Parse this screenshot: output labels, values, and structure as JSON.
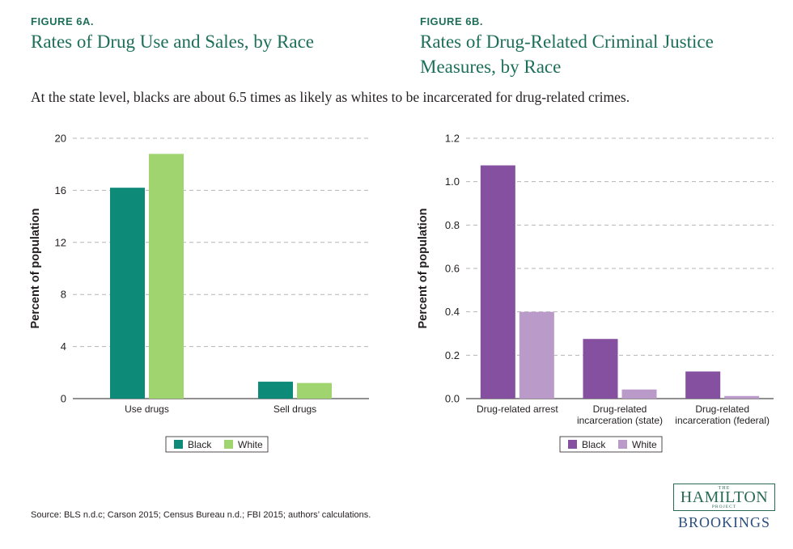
{
  "subtitle": "At the state level, blacks are about 6.5 times as likely as whites to be incarcerated for drug-related crimes.",
  "source": "Source: BLS n.d.c; Carson 2015; Census Bureau n.d.; FBI 2015; authors’ calculations.",
  "logo": {
    "the": "THE",
    "name": "HAMILTON",
    "project": "PROJECT",
    "brookings": "BROOKINGS"
  },
  "colors": {
    "title_green": "#1d6f5a",
    "black_green": "#0e8a78",
    "white_green": "#9fd46f",
    "black_purple": "#84509f",
    "white_purple": "#b99ac9"
  },
  "chart_data": [
    {
      "figure_label": "FIGURE 6A.",
      "title": "Rates of Drug Use and Sales, by Race",
      "type": "bar",
      "ylabel": "Percent of population",
      "xlabel": "",
      "ylim": [
        0,
        20
      ],
      "yticks": [
        "0",
        "4",
        "8",
        "12",
        "16",
        "20"
      ],
      "ytick_values": [
        0,
        4,
        8,
        12,
        16,
        20
      ],
      "categories": [
        [
          "Use drugs"
        ],
        [
          "Sell drugs"
        ]
      ],
      "series": [
        {
          "name": "Black",
          "color": "#0e8a78",
          "values": [
            16.2,
            1.3
          ]
        },
        {
          "name": "White",
          "color": "#9fd46f",
          "values": [
            18.8,
            1.2
          ]
        }
      ],
      "grid": true,
      "legend": "bottom-center"
    },
    {
      "figure_label": "FIGURE 6B.",
      "title": "Rates of Drug-Related Criminal Justice Measures, by Race",
      "type": "bar",
      "ylabel": "Percent of population",
      "xlabel": "",
      "ylim": [
        0,
        1.2
      ],
      "yticks": [
        "0.0",
        "0.2",
        "0.4",
        "0.6",
        "0.8",
        "1.0",
        "1.2"
      ],
      "ytick_values": [
        0,
        0.2,
        0.4,
        0.6,
        0.8,
        1.0,
        1.2
      ],
      "categories": [
        [
          "Drug-related arrest"
        ],
        [
          "Drug-related",
          "incarceration (state)"
        ],
        [
          "Drug-related",
          "incarceration (federal)"
        ]
      ],
      "series": [
        {
          "name": "Black",
          "color": "#84509f",
          "values": [
            1.075,
            0.275,
            0.125
          ]
        },
        {
          "name": "White",
          "color": "#b99ac9",
          "values": [
            0.4,
            0.042,
            0.012
          ]
        }
      ],
      "grid": true,
      "legend": "bottom-center"
    }
  ]
}
